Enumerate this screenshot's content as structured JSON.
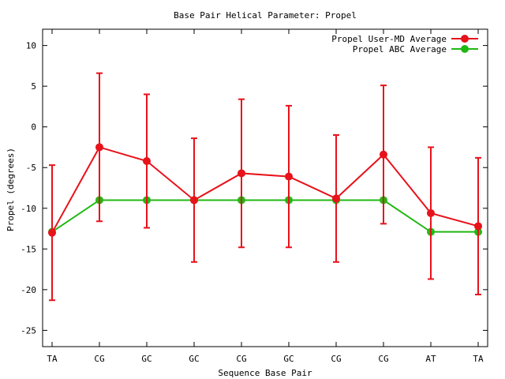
{
  "chart_data": {
    "type": "line",
    "title": "Base Pair Helical Parameter: Propel",
    "xlabel": "Sequence Base Pair",
    "ylabel": "Propel (degrees)",
    "categories": [
      "TA",
      "CG",
      "GC",
      "GC",
      "CG",
      "GC",
      "CG",
      "CG",
      "AT",
      "TA"
    ],
    "ylim": [
      -27,
      12
    ],
    "yticks": [
      -25,
      -20,
      -15,
      -10,
      -5,
      0,
      5,
      10
    ],
    "grid": false,
    "legend_position": "top-right",
    "series": [
      {
        "name": "Propel User-MD Average",
        "color": "#e8121a",
        "values": [
          -13.0,
          -2.5,
          -4.2,
          -9.0,
          -5.7,
          -6.1,
          -8.8,
          -3.4,
          -10.6,
          -12.2
        ],
        "error": [
          8.3,
          9.1,
          8.2,
          7.6,
          9.1,
          8.7,
          7.8,
          8.5,
          8.1,
          8.4
        ]
      },
      {
        "name": "Propel ABC Average",
        "color": "#22b814",
        "values": [
          -12.9,
          -9.0,
          -9.0,
          -9.0,
          -9.0,
          -9.0,
          -9.0,
          -9.0,
          -12.9,
          -12.9
        ]
      }
    ]
  }
}
